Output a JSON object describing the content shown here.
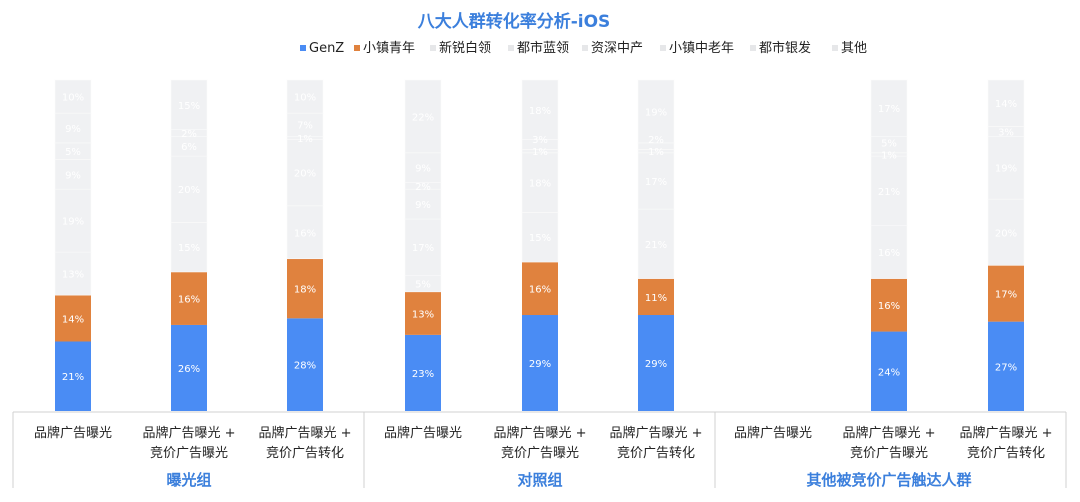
{
  "chart_data": {
    "type": "bar",
    "stacked": true,
    "title": "八大人群转化率分析-iOS",
    "legend_position": "top",
    "series_names": [
      "GenZ",
      "小镇青年",
      "新锐白领",
      "都市蓝领",
      "资深中产",
      "小镇中老年",
      "都市银发",
      "其他"
    ],
    "colors": [
      "#4a8cf4",
      "#e0823e",
      "#f0f1f3",
      "#f0f1f3",
      "#f0f1f3",
      "#f0f1f3",
      "#f0f1f3",
      "#f0f1f3"
    ],
    "legend_colors": [
      "#4a8cf4",
      "#e0823e",
      "#e6e7e9",
      "#e6e7e9",
      "#e6e7e9",
      "#e6e7e9",
      "#e6e7e9",
      "#e6e7e9"
    ],
    "groups": [
      {
        "name": "曝光组",
        "categories": [
          {
            "label": [
              "品牌广告曝光"
            ],
            "values": [
              21,
              14,
              13,
              19,
              9,
              5,
              9,
              10
            ]
          },
          {
            "label": [
              "品牌广告曝光 +",
              "竞价广告曝光"
            ],
            "values": [
              26,
              16,
              15,
              20,
              6,
              2,
              0,
              15
            ]
          },
          {
            "label": [
              "品牌广告曝光 +",
              "竞价广告转化"
            ],
            "values": [
              28,
              18,
              16,
              20,
              1,
              7,
              0,
              10
            ]
          }
        ]
      },
      {
        "name": "对照组",
        "categories": [
          {
            "label": [
              "品牌广告曝光"
            ],
            "values": [
              23,
              13,
              5,
              17,
              9,
              2,
              9,
              22
            ]
          },
          {
            "label": [
              "品牌广告曝光 +",
              "竞价广告曝光"
            ],
            "values": [
              29,
              16,
              15,
              18,
              1,
              3,
              0,
              18
            ]
          },
          {
            "label": [
              "品牌广告曝光 +",
              "竞价广告转化"
            ],
            "values": [
              29,
              11,
              21,
              17,
              1,
              2,
              0,
              19
            ]
          }
        ]
      },
      {
        "name": "其他被竞价广告触达人群",
        "categories": [
          {
            "label": [
              "品牌广告曝光"
            ],
            "values": null
          },
          {
            "label": [
              "品牌广告曝光 +",
              "竞价广告曝光"
            ],
            "values": [
              24,
              16,
              16,
              21,
              1,
              5,
              0,
              17
            ]
          },
          {
            "label": [
              "品牌广告曝光 +",
              "竞价广告转化"
            ],
            "values": [
              27,
              17,
              20,
              19,
              0,
              3,
              0,
              14
            ]
          }
        ]
      }
    ],
    "ylim": [
      0,
      100
    ],
    "value_suffix": "%"
  },
  "colors": {
    "title": "#3b7fdc",
    "group_label": "#3b7fdc",
    "axis": "#d0d0d0"
  }
}
